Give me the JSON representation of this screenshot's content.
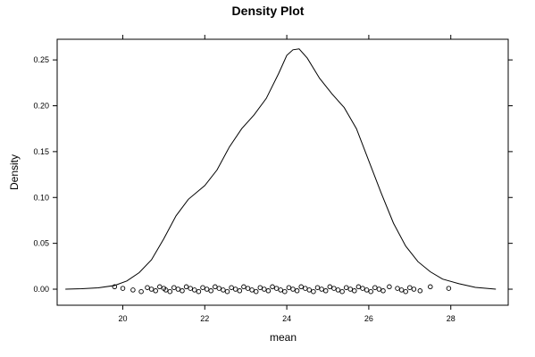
{
  "chart_data": {
    "type": "line",
    "title": "Density Plot",
    "xlabel": "mean",
    "ylabel": "Density",
    "xlim": [
      18.4,
      29.4
    ],
    "ylim": [
      -0.0175,
      0.2725
    ],
    "x_ticks": [
      20,
      22,
      24,
      26,
      28
    ],
    "x_tick_labels": [
      "20",
      "22",
      "24",
      "26",
      "28"
    ],
    "y_ticks": [
      0.0,
      0.05,
      0.1,
      0.15,
      0.2,
      0.25
    ],
    "y_tick_labels": [
      "0.00",
      "0.05",
      "0.10",
      "0.15",
      "0.20",
      "0.25"
    ],
    "grid": false,
    "legend": "none",
    "series": [
      {
        "values": [
          [
            18.6,
            0.0
          ],
          [
            19.0,
            0.0005
          ],
          [
            19.4,
            0.0015
          ],
          [
            19.8,
            0.004
          ],
          [
            20.1,
            0.009
          ],
          [
            20.4,
            0.018
          ],
          [
            20.7,
            0.032
          ],
          [
            21.0,
            0.055
          ],
          [
            21.3,
            0.08
          ],
          [
            21.6,
            0.098
          ],
          [
            22.0,
            0.113
          ],
          [
            22.3,
            0.13
          ],
          [
            22.6,
            0.155
          ],
          [
            22.9,
            0.175
          ],
          [
            23.2,
            0.19
          ],
          [
            23.5,
            0.208
          ],
          [
            23.8,
            0.235
          ],
          [
            24.0,
            0.255
          ],
          [
            24.15,
            0.261
          ],
          [
            24.3,
            0.262
          ],
          [
            24.5,
            0.252
          ],
          [
            24.8,
            0.23
          ],
          [
            25.1,
            0.213
          ],
          [
            25.4,
            0.198
          ],
          [
            25.7,
            0.175
          ],
          [
            26.0,
            0.14
          ],
          [
            26.3,
            0.105
          ],
          [
            26.6,
            0.072
          ],
          [
            26.9,
            0.047
          ],
          [
            27.2,
            0.03
          ],
          [
            27.5,
            0.019
          ],
          [
            27.8,
            0.011
          ],
          [
            28.2,
            0.006
          ],
          [
            28.6,
            0.002
          ],
          [
            29.1,
            0.0
          ]
        ]
      }
    ],
    "rug_points": {
      "y": 0.0,
      "x": [
        19.8,
        20.0,
        20.25,
        20.45,
        20.6,
        20.7,
        20.8,
        20.9,
        21.0,
        21.05,
        21.15,
        21.25,
        21.35,
        21.45,
        21.55,
        21.65,
        21.75,
        21.85,
        21.95,
        22.05,
        22.15,
        22.25,
        22.35,
        22.45,
        22.55,
        22.65,
        22.75,
        22.85,
        22.95,
        23.05,
        23.15,
        23.25,
        23.35,
        23.45,
        23.55,
        23.65,
        23.75,
        23.85,
        23.95,
        24.05,
        24.15,
        24.25,
        24.35,
        24.45,
        24.55,
        24.65,
        24.75,
        24.85,
        24.95,
        25.05,
        25.15,
        25.25,
        25.35,
        25.45,
        25.55,
        25.65,
        25.75,
        25.85,
        25.95,
        26.05,
        26.15,
        26.25,
        26.35,
        26.5,
        26.7,
        26.8,
        26.9,
        27.0,
        27.1,
        27.25,
        27.5,
        27.95
      ]
    }
  }
}
